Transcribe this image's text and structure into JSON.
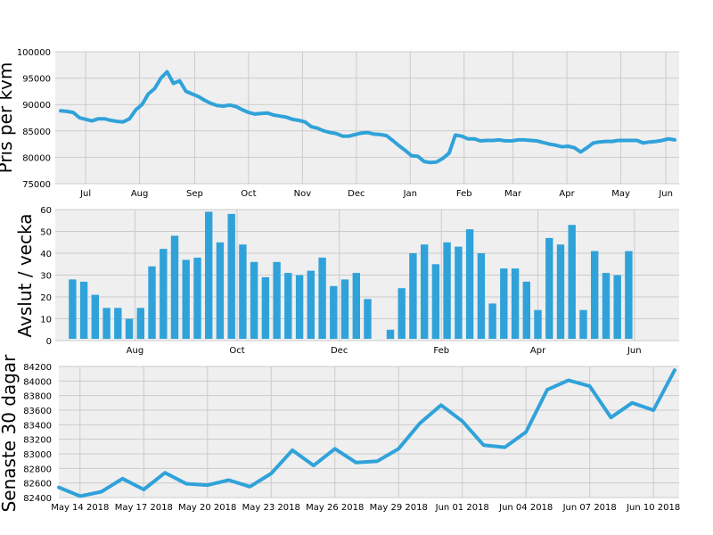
{
  "chart_data": [
    {
      "type": "line",
      "ylabel": "Pris per kvm",
      "ylim": [
        75000,
        100000
      ],
      "yticks": [
        "75000",
        "80000",
        "85000",
        "90000",
        "95000",
        "100000"
      ],
      "xlim": [
        0,
        49
      ],
      "xticks": [
        {
          "x": 2,
          "label": "Jul"
        },
        {
          "x": 6.3,
          "label": "Aug"
        },
        {
          "x": 10.7,
          "label": "Sep"
        },
        {
          "x": 15,
          "label": "Oct"
        },
        {
          "x": 19.3,
          "label": "Nov"
        },
        {
          "x": 23.6,
          "label": "Dec"
        },
        {
          "x": 27.9,
          "label": "Jan"
        },
        {
          "x": 32.2,
          "label": "Feb"
        },
        {
          "x": 36.1,
          "label": "Mar"
        },
        {
          "x": 40.4,
          "label": "Apr"
        },
        {
          "x": 44.7,
          "label": "May"
        },
        {
          "x": 48.3,
          "label": "Jun"
        }
      ],
      "grid": true,
      "color": "#30a2da",
      "series": [
        {
          "x": [
            0,
            0.5,
            1,
            1.5,
            2,
            2.5,
            3,
            3.5,
            4,
            4.5,
            5,
            5.5,
            6,
            6.5,
            7,
            7.5,
            8,
            8.5,
            9,
            9.5,
            10,
            10.5,
            11,
            11.5,
            12,
            12.5,
            13,
            13.5,
            14,
            14.5,
            15,
            15.5,
            16,
            16.5,
            17,
            17.5,
            18,
            18.5,
            19,
            19.5,
            20,
            20.5,
            21,
            21.5,
            22,
            22.5,
            23,
            23.5,
            24,
            24.5,
            25,
            25.5,
            26,
            26.5,
            27,
            27.5,
            28,
            28.5,
            29,
            29.5,
            30,
            30.5,
            31,
            31.5,
            32,
            32.5,
            33,
            33.5,
            34,
            34.5,
            35,
            35.5,
            36,
            36.5,
            37,
            37.5,
            38,
            38.5,
            39,
            39.5,
            40,
            40.5,
            41,
            41.5,
            42,
            42.5,
            43,
            43.5,
            44,
            44.5,
            45,
            45.5,
            46,
            46.5,
            47,
            47.5,
            48,
            48.5,
            49
          ],
          "values": [
            88800,
            88700,
            88500,
            87500,
            87200,
            86900,
            87300,
            87300,
            87000,
            86800,
            86700,
            87300,
            89000,
            90000,
            92000,
            93000,
            95000,
            96200,
            94000,
            94500,
            92500,
            92000,
            91500,
            90800,
            90200,
            89800,
            89700,
            89900,
            89600,
            89000,
            88500,
            88200,
            88300,
            88400,
            88000,
            87800,
            87600,
            87200,
            87000,
            86700,
            85800,
            85500,
            85000,
            84700,
            84500,
            84000,
            84000,
            84300,
            84600,
            84700,
            84400,
            84300,
            84100,
            83200,
            82200,
            81300,
            80300,
            80200,
            79200,
            79000,
            79100,
            79800,
            80800,
            84200,
            84000,
            83500,
            83500,
            83100,
            83200,
            83200,
            83300,
            83100,
            83100,
            83300,
            83300,
            83200,
            83100,
            82800,
            82500,
            82300,
            82000,
            82100,
            81800,
            81000,
            81800,
            82700,
            82900,
            83000,
            83000,
            83200,
            83200,
            83200,
            83200,
            82700,
            82900,
            83000,
            83200,
            83500,
            83300
          ]
        }
      ]
    },
    {
      "type": "bar",
      "ylabel": "Avslut / vecka",
      "ylim": [
        0,
        60
      ],
      "yticks": [
        "0",
        "10",
        "20",
        "30",
        "40",
        "50",
        "60"
      ],
      "xlim": [
        -0.5,
        52.5
      ],
      "xticks": [
        {
          "x": 5.5,
          "label": "Aug"
        },
        {
          "x": 14.5,
          "label": "Oct"
        },
        {
          "x": 23.5,
          "label": "Dec"
        },
        {
          "x": 32.5,
          "label": "Feb"
        },
        {
          "x": 41,
          "label": "Apr"
        },
        {
          "x": 49.5,
          "label": "Jun"
        }
      ],
      "grid": true,
      "color": "#30a2da",
      "values": [
        28,
        27,
        21,
        15,
        15,
        10,
        15,
        34,
        42,
        48,
        37,
        38,
        59,
        45,
        58,
        44,
        36,
        29,
        36,
        31,
        30,
        32,
        38,
        25,
        28,
        31,
        19,
        0,
        5,
        24,
        40,
        44,
        35,
        45,
        43,
        51,
        40,
        17,
        33,
        33,
        27,
        14,
        47,
        44,
        53,
        14,
        41,
        31,
        30,
        41
      ]
    },
    {
      "type": "line",
      "ylabel": "Senaste 30 dagar",
      "ylim": [
        82400,
        84200
      ],
      "yticks": [
        "82400",
        "82600",
        "82800",
        "83000",
        "83200",
        "83400",
        "83600",
        "83800",
        "84000",
        "84200"
      ],
      "xticks": [
        "May 14 2018",
        "May 17 2018",
        "May 20 2018",
        "May 23 2018",
        "May 26 2018",
        "May 29 2018",
        "Jun 01 2018",
        "Jun 04 2018",
        "Jun 07 2018",
        "Jun 10 2018"
      ],
      "x": [
        "May 13 2018",
        "May 14 2018",
        "May 15 2018",
        "May 16 2018",
        "May 17 2018",
        "May 18 2018",
        "May 19 2018",
        "May 20 2018",
        "May 21 2018",
        "May 22 2018",
        "May 23 2018",
        "May 24 2018",
        "May 25 2018",
        "May 26 2018",
        "May 27 2018",
        "May 28 2018",
        "May 29 2018",
        "May 30 2018",
        "May 31 2018",
        "Jun 01 2018",
        "Jun 02 2018",
        "Jun 03 2018",
        "Jun 04 2018",
        "Jun 05 2018",
        "Jun 06 2018",
        "Jun 07 2018",
        "Jun 08 2018",
        "Jun 09 2018",
        "Jun 10 2018",
        "Jun 11 2018"
      ],
      "grid": true,
      "color": "#30a2da",
      "values": [
        82540,
        82420,
        82480,
        82660,
        82510,
        82740,
        82590,
        82570,
        82640,
        82550,
        82730,
        83050,
        82840,
        83070,
        82880,
        82900,
        83070,
        83420,
        83670,
        83450,
        83120,
        83090,
        83300,
        83880,
        84010,
        83930,
        83500,
        83700,
        83600,
        84150
      ]
    }
  ]
}
